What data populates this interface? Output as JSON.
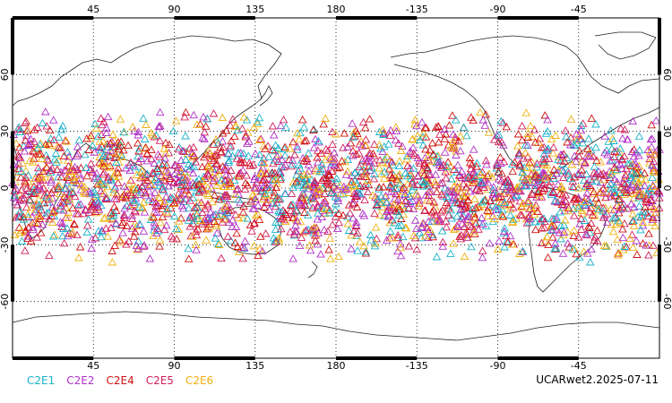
{
  "footer_label": "UCARwet2.2025-07-11",
  "colors": {
    "C2E1": "#1ab2c8",
    "C2E2": "#b030c8",
    "C2E4": "#d01010",
    "C2E5": "#d21e5a",
    "C2E6": "#f0b010"
  },
  "legend": [
    {
      "name": "C2E1",
      "color": "#1ab2c8"
    },
    {
      "name": "C2E2",
      "color": "#b030c8"
    },
    {
      "name": "C2E4",
      "color": "#d01010"
    },
    {
      "name": "C2E5",
      "color": "#d21e5a"
    },
    {
      "name": "C2E6",
      "color": "#f0b010"
    }
  ],
  "axes": {
    "lon_ticks_top": [
      "45",
      "90",
      "135",
      "180",
      "-135",
      "-90",
      "-45"
    ],
    "lon_ticks_bottom": [
      "45",
      "90",
      "135",
      "180",
      "-135",
      "-90",
      "-45"
    ],
    "lat_ticks_left": [
      "60",
      "30",
      "0",
      "-30",
      "-60"
    ],
    "lat_ticks_right": [
      "60",
      "30",
      "0",
      "-30",
      "-60"
    ],
    "lon_range": [
      0,
      360
    ],
    "lat_range": [
      -90,
      90
    ],
    "grid": "dotted"
  },
  "chart_data": {
    "type": "scatter",
    "marker": "triangle",
    "projection": "equirectangular",
    "series": [
      {
        "name": "C2E1",
        "lat_range": [
          -40,
          42
        ],
        "lon_range": [
          0,
          360
        ]
      },
      {
        "name": "C2E2",
        "lat_range": [
          -40,
          42
        ],
        "lon_range": [
          0,
          360
        ]
      },
      {
        "name": "C2E4",
        "lat_range": [
          -40,
          42
        ],
        "lon_range": [
          0,
          360
        ]
      },
      {
        "name": "C2E5",
        "lat_range": [
          -40,
          42
        ],
        "lon_range": [
          0,
          360
        ]
      },
      {
        "name": "C2E6",
        "lat_range": [
          -40,
          42
        ],
        "lon_range": [
          0,
          360
        ]
      }
    ]
  }
}
